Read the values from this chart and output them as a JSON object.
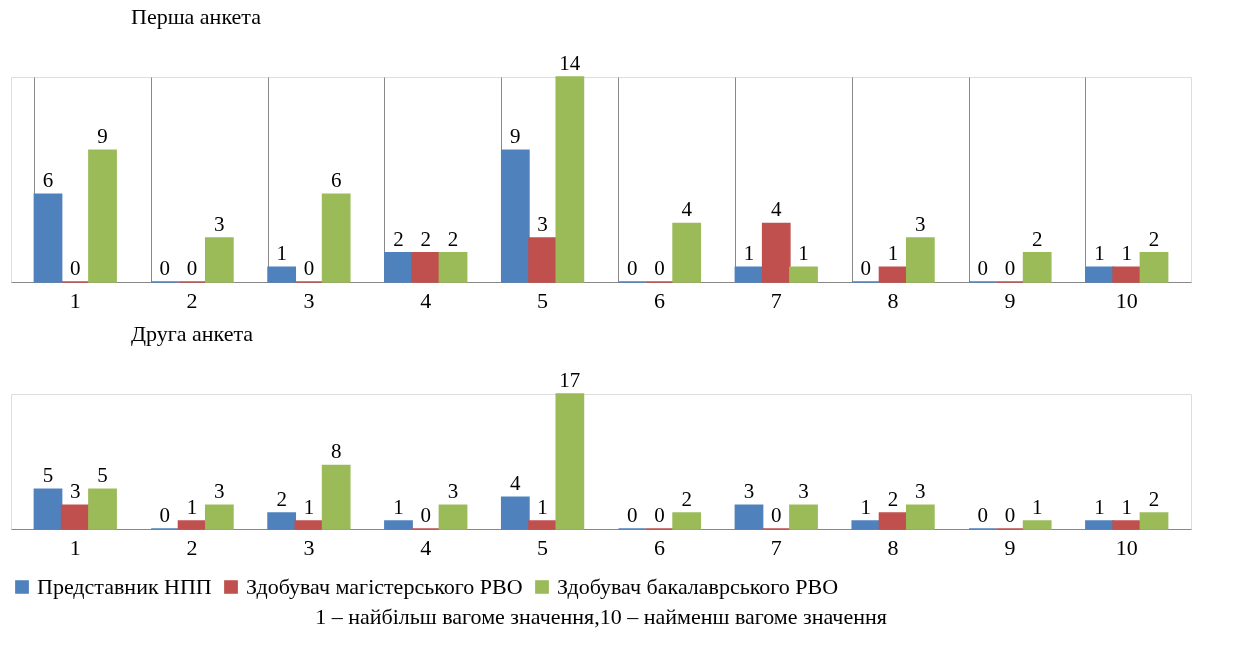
{
  "chart_data": [
    {
      "type": "bar",
      "title": "Перша анкета",
      "categories": [
        "1",
        "2",
        "3",
        "4",
        "5",
        "6",
        "7",
        "8",
        "9",
        "10"
      ],
      "data_labels": true,
      "legend": false,
      "grid": "x",
      "series": [
        {
          "color": "#4f81bd",
          "values": [
            6,
            0,
            1,
            2,
            9,
            0,
            1,
            0,
            0,
            1
          ]
        },
        {
          "color": "#c0504d",
          "values": [
            0,
            0,
            0,
            2,
            3,
            0,
            4,
            1,
            0,
            1
          ]
        },
        {
          "color": "#9bbb59",
          "values": [
            9,
            3,
            6,
            2,
            14,
            4,
            1,
            3,
            2,
            2
          ]
        }
      ]
    },
    {
      "type": "bar",
      "title": "Друга анкета",
      "categories": [
        "1",
        "2",
        "3",
        "4",
        "5",
        "6",
        "7",
        "8",
        "9",
        "10"
      ],
      "data_labels": true,
      "legend": "bottom",
      "annotations": [
        "1 – найбільш вагоме значення,10 – найменш вагоме значення"
      ],
      "series": [
        {
          "name": "Представник НПП",
          "color": "#4f81bd",
          "values": [
            5,
            0,
            2,
            1,
            4,
            0,
            3,
            1,
            0,
            1
          ]
        },
        {
          "name": "Здобувач магістерського РВО",
          "color": "#c0504d",
          "values": [
            3,
            1,
            1,
            0,
            1,
            0,
            0,
            2,
            0,
            1
          ]
        },
        {
          "name": "Здобувач бакалаврського РВО",
          "color": "#9bbb59",
          "values": [
            5,
            3,
            8,
            3,
            17,
            2,
            3,
            3,
            1,
            2
          ]
        }
      ]
    }
  ]
}
